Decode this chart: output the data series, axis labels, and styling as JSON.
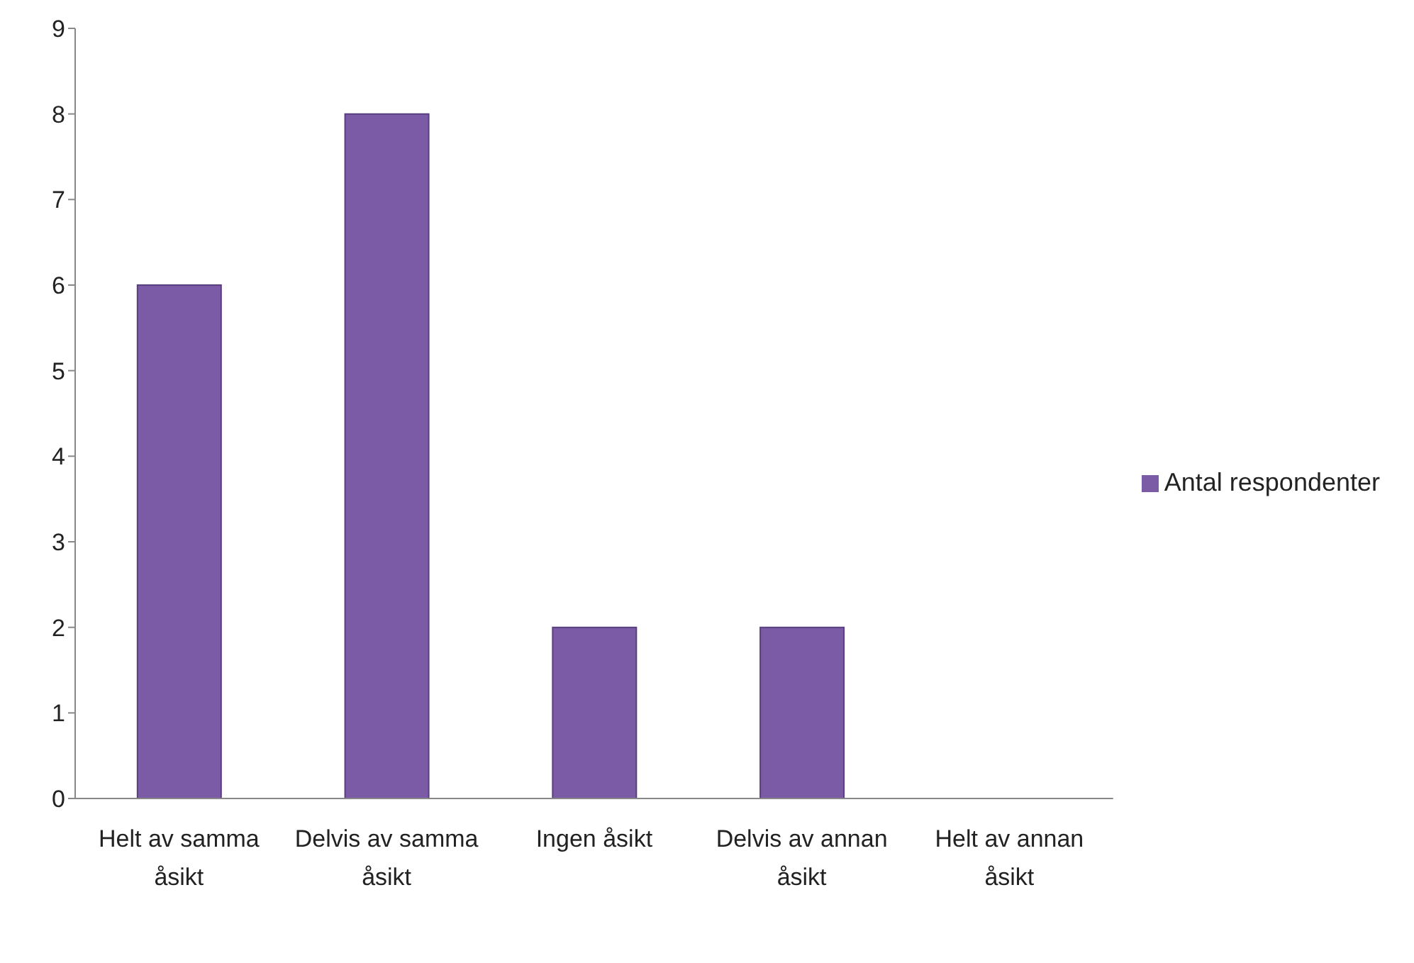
{
  "chart_data": {
    "type": "bar",
    "categories": [
      "Helt av samma åsikt",
      "Delvis av samma åsikt",
      "Ingen åsikt",
      "Delvis av annan åsikt",
      "Helt av annan åsikt"
    ],
    "series": [
      {
        "name": "Antal respondenter",
        "color": "#7b5aa6",
        "values": [
          6,
          8,
          2,
          2,
          0
        ]
      }
    ],
    "ylim": [
      0,
      9
    ],
    "yticks": [
      0,
      1,
      2,
      3,
      4,
      5,
      6,
      7,
      8,
      9
    ],
    "grid": false,
    "legend": "right"
  }
}
